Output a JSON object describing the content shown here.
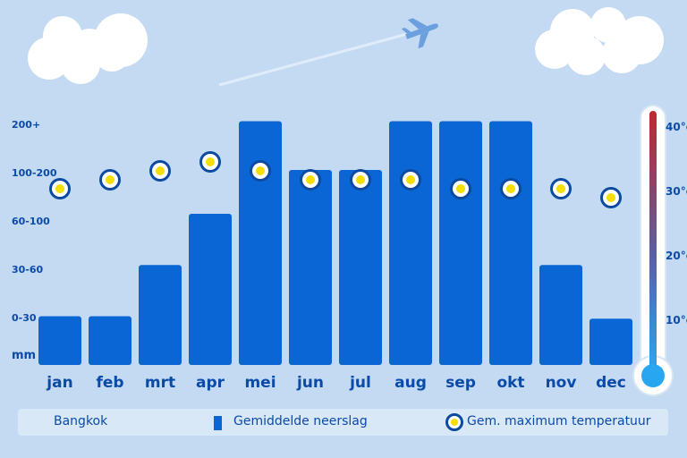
{
  "chart_data": {
    "type": "bar",
    "categories": [
      "jan",
      "feb",
      "mrt",
      "apr",
      "mei",
      "jun",
      "jul",
      "aug",
      "sep",
      "okt",
      "nov",
      "dec"
    ],
    "y_tick_labels": [
      "mm",
      "0-30",
      "30-60",
      "60-100",
      "100-200",
      "200+"
    ],
    "series": [
      {
        "name": "Gemiddelde neerslag",
        "type": "bar",
        "unit": "mm",
        "values": [
          1.0,
          1.0,
          2.05,
          3.1,
          5.0,
          4.0,
          4.0,
          5.0,
          5.0,
          5.0,
          2.05,
          0.95
        ],
        "note_scale": "category index: 0=0-30, 1=30-60, 2=60-100, 3=100-200, 4=200+"
      },
      {
        "name": "Gem. maximum temperatuur",
        "type": "marker",
        "unit": "°C",
        "values": [
          32,
          33,
          34,
          35,
          34,
          33,
          33,
          33,
          32,
          32,
          32,
          31
        ]
      }
    ],
    "temperature_axis": {
      "tick_labels": [
        "10°c",
        "20°c",
        "30°c",
        "40°c"
      ],
      "ticks": [
        10,
        20,
        30,
        40
      ]
    },
    "legend_placement": "bottom"
  },
  "legend": {
    "city": "Bangkok",
    "rain_label": "Gemiddelde neerslag",
    "temp_label": "Gem. maximum temperatuur"
  },
  "colors": {
    "background": "#c3daf2",
    "bar": "#0a66d4",
    "text": "#0a4aa8",
    "marker_ring": "#0b4aa0",
    "marker_dot": "#f5df00",
    "thermo_top": "#c0282d",
    "thermo_bottom": "#29a6f0"
  }
}
